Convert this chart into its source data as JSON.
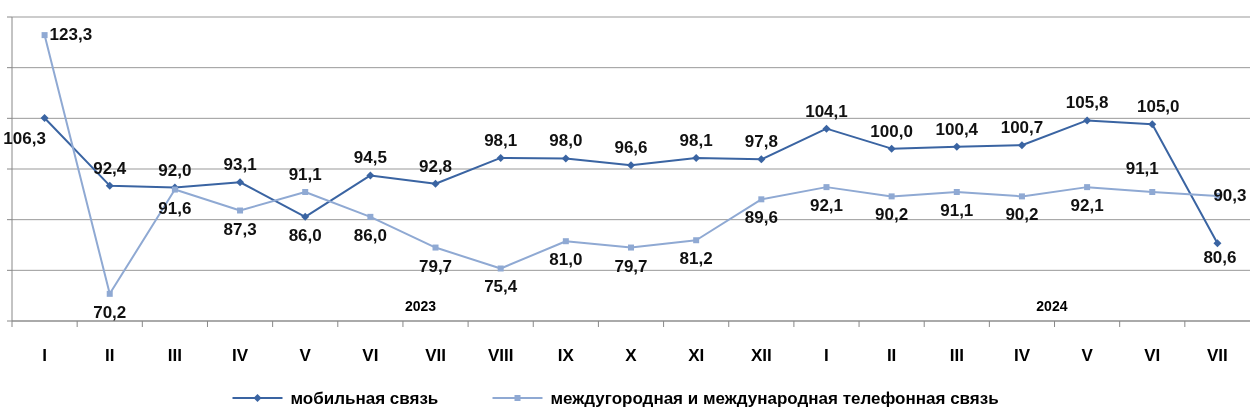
{
  "chart_data": {
    "type": "line",
    "categories": [
      "I",
      "II",
      "III",
      "IV",
      "V",
      "VI",
      "VII",
      "VIII",
      "IX",
      "X",
      "XI",
      "XII",
      "I",
      "II",
      "III",
      "IV",
      "V",
      "VI",
      "VII"
    ],
    "series": [
      {
        "name": "мобильная связь",
        "color": "#3a64a2",
        "marker": "diamond",
        "values": [
          106.3,
          92.4,
          92.0,
          93.1,
          86.0,
          94.5,
          92.8,
          98.1,
          98.0,
          96.6,
          98.1,
          97.8,
          104.1,
          100.0,
          100.4,
          100.7,
          105.8,
          105.0,
          80.6
        ],
        "value_labels": [
          "106,3",
          "92,4",
          "92,0",
          "93,1",
          "86,0",
          "94,5",
          "92,8",
          "98,1",
          "98,0",
          "96,6",
          "98,1",
          "97,8",
          "104,1",
          "100,0",
          "100,4",
          "100,7",
          "105,8",
          "105,0",
          "80,6"
        ]
      },
      {
        "name": "междугородная и международная телефонная связь",
        "color": "#8fa9d3",
        "marker": "square",
        "values": [
          123.3,
          70.2,
          91.6,
          87.3,
          91.1,
          86.0,
          79.7,
          75.4,
          81.0,
          79.7,
          81.2,
          89.6,
          92.1,
          90.2,
          91.1,
          90.2,
          92.1,
          91.1,
          90.3
        ],
        "value_labels": [
          "123,3",
          "70,2",
          "91,6",
          "87,3",
          "91,1",
          "86,0",
          "79,7",
          "75,4",
          "81,0",
          "79,7",
          "81,2",
          "89,6",
          "92,1",
          "90,2",
          "91,1",
          "90,2",
          "92,1",
          "91,1",
          "90,3"
        ]
      }
    ],
    "grid": "y",
    "legend": "bottom",
    "tick_labels": "x",
    "line_style": "solid",
    "annotations": [
      "2023",
      "2024"
    ]
  }
}
